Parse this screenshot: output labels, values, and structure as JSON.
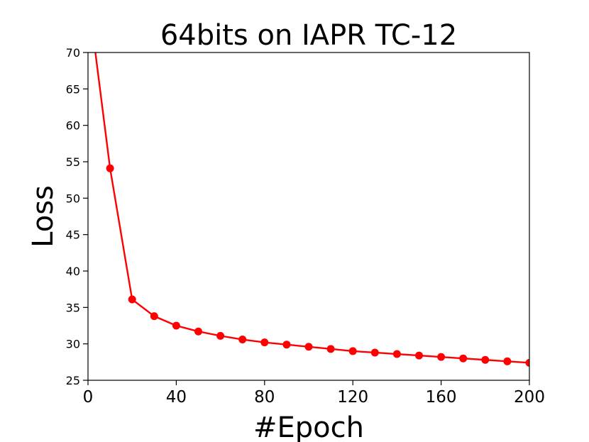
{
  "chart_data": {
    "type": "line",
    "title": "64bits on IAPR TC-12",
    "xlabel": "#Epoch",
    "ylabel": "Loss",
    "xlim": [
      0,
      200
    ],
    "ylim": [
      25,
      70
    ],
    "xticks": [
      0,
      40,
      80,
      120,
      160,
      200
    ],
    "yticks": [
      25,
      30,
      35,
      40,
      45,
      50,
      55,
      60,
      65,
      70
    ],
    "grid": false,
    "series": [
      {
        "color": "#ff0000",
        "marker": "circle",
        "x": [
          0,
          10,
          20,
          30,
          40,
          50,
          60,
          70,
          80,
          90,
          100,
          110,
          120,
          130,
          140,
          150,
          160,
          170,
          180,
          190,
          200
        ],
        "y": [
          78,
          54.1,
          36.1,
          33.8,
          32.5,
          31.7,
          31.1,
          30.6,
          30.2,
          29.9,
          29.6,
          29.3,
          29.0,
          28.8,
          28.6,
          28.4,
          28.2,
          28.0,
          27.8,
          27.6,
          27.4
        ]
      }
    ]
  }
}
